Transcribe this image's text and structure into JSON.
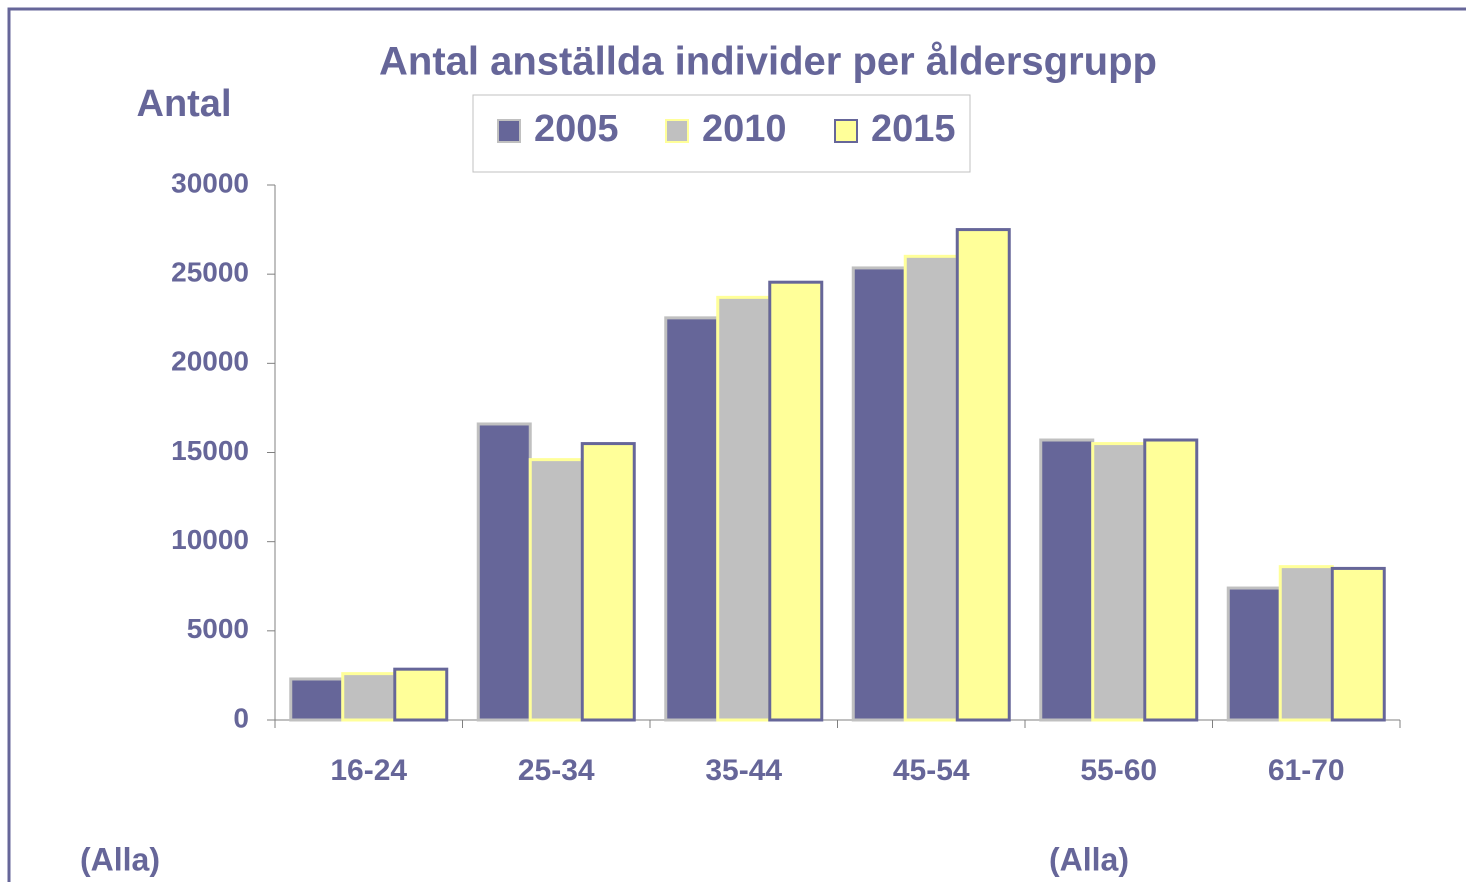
{
  "chart_data": {
    "type": "bar",
    "title": "Antal anställda individer per åldersgrupp",
    "y_label": "Antal",
    "annotations": [
      "(Alla)",
      "(Alla)"
    ],
    "categories": [
      "16-24",
      "25-34",
      "35-44",
      "45-54",
      "55-60",
      "61-70"
    ],
    "series": [
      {
        "name": "2005",
        "color": "#666699",
        "edgecolor": "#c0c0c0",
        "values": [
          2300,
          16600,
          22550,
          25350,
          15700,
          7400
        ]
      },
      {
        "name": "2010",
        "color": "#c0c0c0",
        "edgecolor": "#ffff99",
        "values": [
          2600,
          14600,
          23700,
          26000,
          15500,
          8600
        ]
      },
      {
        "name": "2015",
        "color": "#ffff99",
        "edgecolor": "#666699",
        "values": [
          2850,
          15500,
          24550,
          27500,
          15700,
          8500
        ]
      }
    ],
    "ylim": [
      0,
      30000
    ],
    "yticks": [
      0,
      5000,
      10000,
      15000,
      20000,
      25000,
      30000
    ],
    "legend": "top"
  }
}
